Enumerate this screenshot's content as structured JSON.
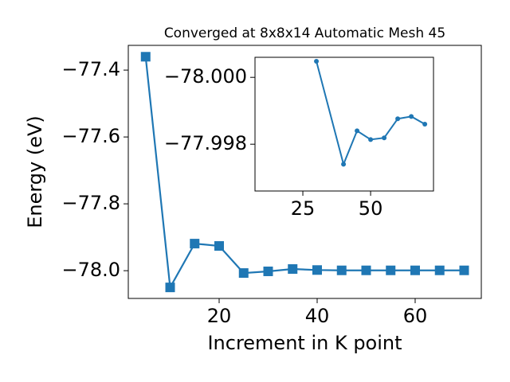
{
  "chart_data": [
    {
      "type": "line",
      "title": "Converged at 8x8x14 Automatic Mesh 45",
      "x_label": "Increment in K point",
      "y_label": "Energy (eV)",
      "x": [
        5,
        10,
        15,
        20,
        25,
        30,
        35,
        40,
        45,
        50,
        55,
        60,
        65,
        70
      ],
      "series": [
        {
          "color": "#1f77b4",
          "marker": "square",
          "values": [
            -77.36,
            -78.05,
            -77.919,
            -77.926,
            -78.007,
            -78.002,
            -77.995,
            -77.998,
            -77.999,
            -77.999,
            -77.999,
            -77.999,
            -77.999,
            -77.999
          ]
        }
      ],
      "xlim": [
        1.46,
        73.5
      ],
      "xticks": [
        20,
        40,
        60
      ],
      "ylim": [
        -78.083,
        -77.326
      ],
      "yticks": [
        {
          "value": -78.0,
          "label": "−78.0"
        },
        {
          "value": -77.8,
          "label": "−77.8"
        },
        {
          "value": -77.6,
          "label": "−77.6"
        },
        {
          "value": -77.4,
          "label": "−77.4"
        }
      ]
    },
    {
      "type": "line",
      "x": [
        30,
        40,
        45,
        50,
        55,
        60,
        65,
        70
      ],
      "series": [
        {
          "color": "#1f77b4",
          "marker": "circle",
          "values": [
            -78.00048,
            -77.9974,
            -77.9984,
            -77.99814,
            -77.99819,
            -77.99876,
            -77.99883,
            -77.9986
          ]
        }
      ],
      "xlim": [
        7.35,
        73.2
      ],
      "xticks": [
        25,
        50
      ],
      "ylim": [
        -77.9966,
        -78.0006
      ],
      "yticks": [
        {
          "value": -77.998,
          "label": "−77.998"
        },
        {
          "value": -78.0,
          "label": "−78.000"
        }
      ]
    }
  ]
}
